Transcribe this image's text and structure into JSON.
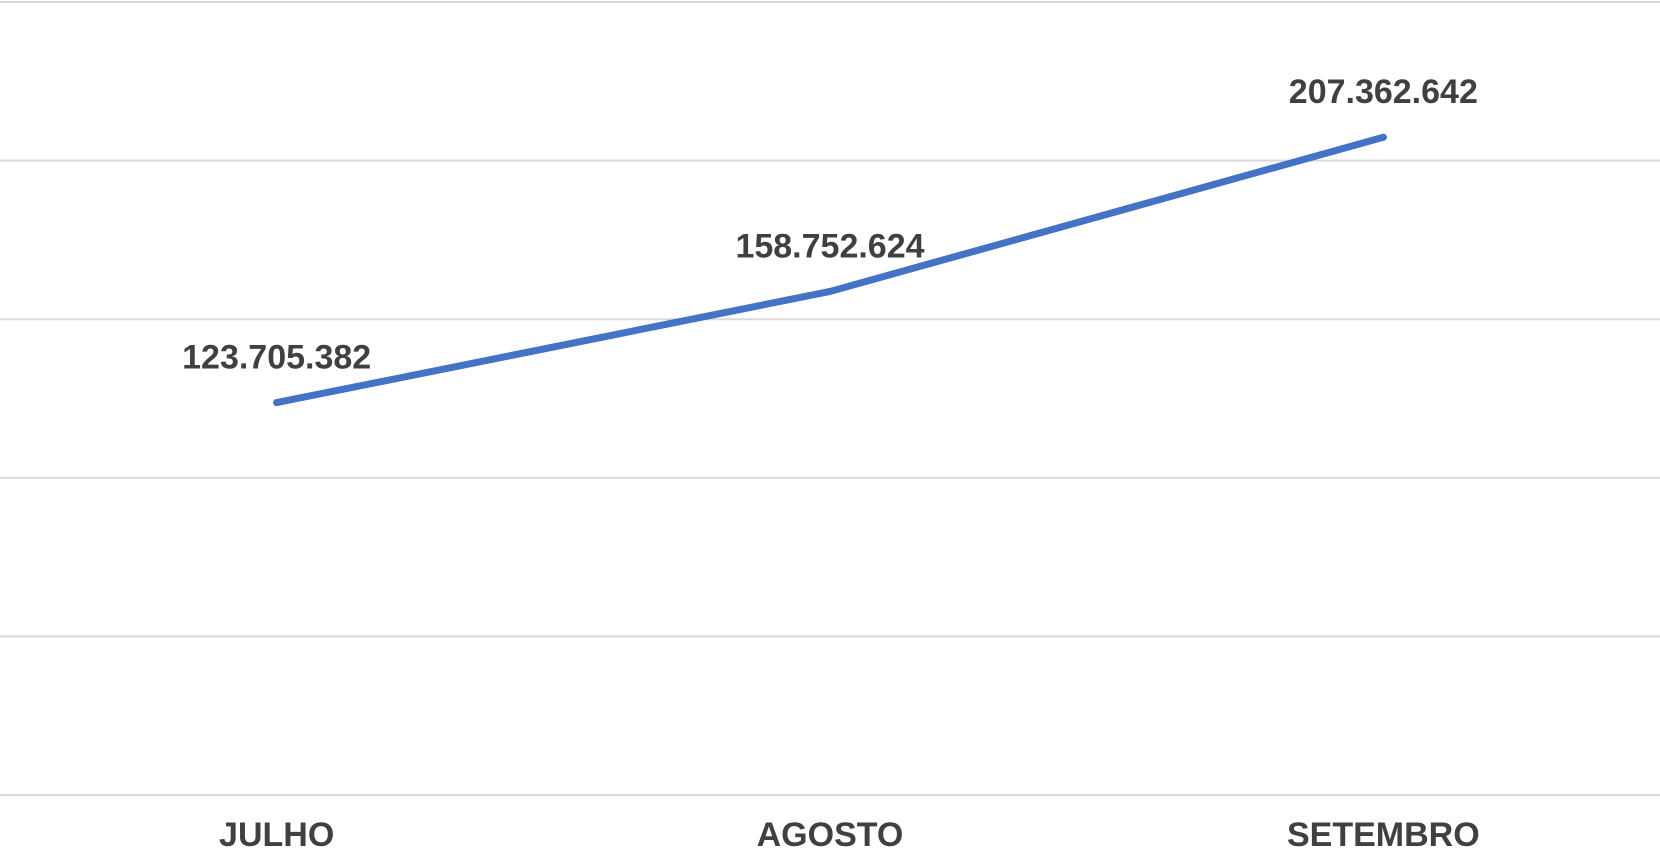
{
  "chart_data": {
    "type": "line",
    "title": "",
    "xlabel": "",
    "ylabel": "",
    "categories": [
      "JULHO",
      "AGOSTO",
      "SETEMBRO"
    ],
    "series": [
      {
        "values": [
          123705382,
          158752624,
          207362642
        ],
        "data_labels": [
          "123.705.382",
          "158.752.624",
          "207.362.642"
        ],
        "color": "#4472c4"
      }
    ],
    "ylim": [
      0,
      250000000
    ],
    "gridlines": true,
    "legend": "none",
    "colors": {
      "grid": "#d9d9d9",
      "labels": "#404040",
      "series": "#4472c4"
    }
  }
}
